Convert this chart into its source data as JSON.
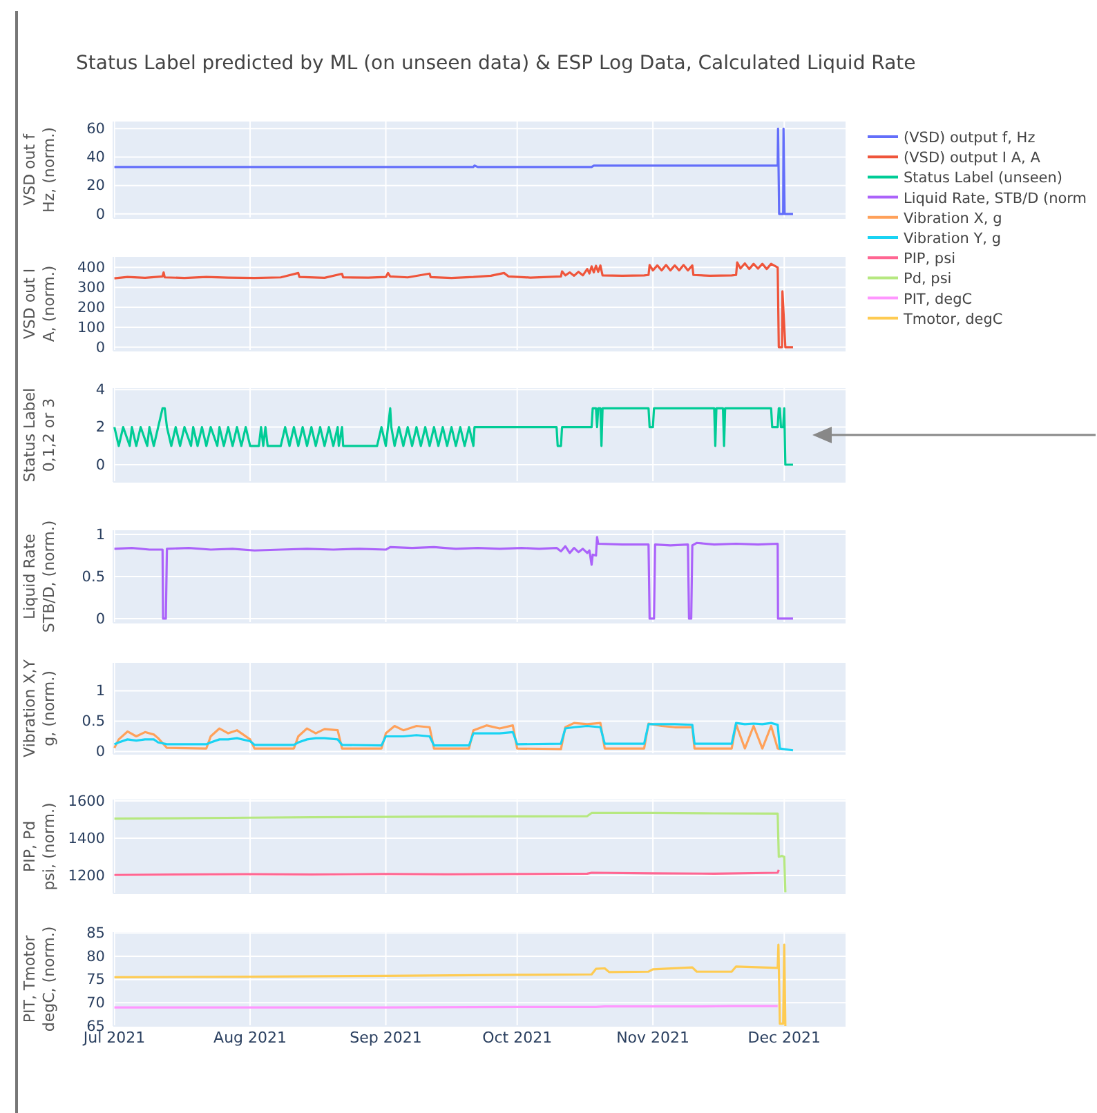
{
  "chart_data": [
    {
      "type": "line",
      "title": "Status Label predicted by ML (on unseen data) & ESP Log Data, Calculated Liquid Rate",
      "ylabel": "VSD out f\nHz, (norm.)",
      "grid": true,
      "legend": "right",
      "tick_labels": "y",
      "xlim": [
        "2021-06-30T18:00",
        "2021-12-15"
      ],
      "xticks": [
        {
          "value": "2021-07-01",
          "label": null
        },
        {
          "value": "2021-08-01",
          "label": null
        },
        {
          "value": "2021-09-01",
          "label": null
        },
        {
          "value": "2021-10-01",
          "label": null
        },
        {
          "value": "2021-11-01",
          "label": null
        },
        {
          "value": "2021-12-01",
          "label": null
        }
      ],
      "ylim": [
        -3,
        65
      ],
      "yticks": [
        0,
        20,
        40,
        60
      ],
      "x": [
        "2021-07-01",
        "2021-09-21",
        "2021-09-21T06:00",
        "2021-09-22",
        "2021-10-18",
        "2021-10-18T12:00",
        "2021-11-29T12:00",
        "2021-11-29T14:00",
        "2021-11-29T20:00",
        "2021-11-30T18:00",
        "2021-11-30T20:00",
        "2021-12-01T02:00",
        "2021-12-03"
      ],
      "series": [
        {
          "name": "(VSD) output f, Hz",
          "color": "#636efa",
          "values": [
            33,
            33,
            34,
            33,
            33,
            34,
            34,
            60,
            0,
            0,
            60,
            0,
            0
          ]
        }
      ]
    },
    {
      "type": "line",
      "ylabel": "VSD out I\nA, (norm.)",
      "grid": true,
      "legend": "right",
      "tick_labels": "y",
      "xlim": [
        "2021-06-30T18:00",
        "2021-12-15"
      ],
      "xticks": [
        {
          "value": "2021-07-01",
          "label": null
        },
        {
          "value": "2021-08-01",
          "label": null
        },
        {
          "value": "2021-09-01",
          "label": null
        },
        {
          "value": "2021-10-01",
          "label": null
        },
        {
          "value": "2021-11-01",
          "label": null
        },
        {
          "value": "2021-12-01",
          "label": null
        }
      ],
      "ylim": [
        -18,
        453
      ],
      "yticks": [
        0,
        100,
        200,
        300,
        400
      ],
      "x": [
        "2021-07-01",
        "2021-07-04",
        "2021-07-08",
        "2021-07-12",
        "2021-07-12T06:00",
        "2021-07-12T12:00",
        "2021-07-17",
        "2021-07-22",
        "2021-07-27",
        "2021-08-02",
        "2021-08-08",
        "2021-08-12",
        "2021-08-12T06:00",
        "2021-08-18",
        "2021-08-22",
        "2021-08-22T06:00",
        "2021-08-28",
        "2021-09-01",
        "2021-09-01T12:00",
        "2021-09-02",
        "2021-09-06",
        "2021-09-11",
        "2021-09-11T06:00",
        "2021-09-16",
        "2021-09-21",
        "2021-09-25",
        "2021-09-28",
        "2021-09-29",
        "2021-10-04",
        "2021-10-08",
        "2021-10-11",
        "2021-10-11T06:00",
        "2021-10-12",
        "2021-10-13",
        "2021-10-14",
        "2021-10-15",
        "2021-10-16",
        "2021-10-17",
        "2021-10-17T12:00",
        "2021-10-18",
        "2021-10-18T12:00",
        "2021-10-19",
        "2021-10-19T12:00",
        "2021-10-20",
        "2021-10-20T12:00",
        "2021-10-25",
        "2021-10-30",
        "2021-10-31",
        "2021-10-31T06:00",
        "2021-11-01",
        "2021-11-02",
        "2021-11-03",
        "2021-11-04",
        "2021-11-05",
        "2021-11-06",
        "2021-11-07",
        "2021-11-08",
        "2021-11-09",
        "2021-11-10",
        "2021-11-10T06:00",
        "2021-11-14",
        "2021-11-19",
        "2021-11-20",
        "2021-11-20T06:00",
        "2021-11-21",
        "2021-11-22",
        "2021-11-23",
        "2021-11-24",
        "2021-11-25",
        "2021-11-26",
        "2021-11-27",
        "2021-11-28",
        "2021-11-29T12:00",
        "2021-11-29T14:00",
        "2021-11-29T18:00",
        "2021-11-30T12:00",
        "2021-11-30T14:00",
        "2021-12-01T06:00",
        "2021-12-03"
      ],
      "series": [
        {
          "name": "(VSD) output I A, A",
          "color": "#ef553b",
          "values": [
            345,
            352,
            348,
            355,
            375,
            350,
            347,
            352,
            349,
            347,
            350,
            372,
            352,
            348,
            368,
            350,
            349,
            352,
            372,
            355,
            350,
            369,
            351,
            347,
            352,
            358,
            372,
            355,
            349,
            352,
            355,
            380,
            360,
            375,
            358,
            378,
            360,
            392,
            370,
            405,
            375,
            408,
            378,
            410,
            360,
            358,
            360,
            362,
            412,
            385,
            410,
            385,
            412,
            385,
            410,
            385,
            412,
            385,
            410,
            362,
            358,
            360,
            362,
            425,
            395,
            420,
            392,
            418,
            394,
            418,
            392,
            418,
            400,
            275,
            0,
            0,
            280,
            0,
            0
          ]
        }
      ]
    },
    {
      "type": "line",
      "ylabel": "Status Label\n0,1,2 or 3",
      "grid": true,
      "legend": "right",
      "tick_labels": "y",
      "xlim": [
        "2021-06-30T18:00",
        "2021-12-15"
      ],
      "xticks": [
        {
          "value": "2021-07-01",
          "label": null
        },
        {
          "value": "2021-08-01",
          "label": null
        },
        {
          "value": "2021-09-01",
          "label": null
        },
        {
          "value": "2021-10-01",
          "label": null
        },
        {
          "value": "2021-11-01",
          "label": null
        },
        {
          "value": "2021-12-01",
          "label": null
        }
      ],
      "ylim": [
        -0.92,
        4.08
      ],
      "yticks": [
        0,
        2,
        4
      ],
      "x": [
        "2021-07-01",
        "2021-07-02",
        "2021-07-03",
        "2021-07-04T12:00",
        "2021-07-05",
        "2021-07-06",
        "2021-07-07",
        "2021-07-08T12:00",
        "2021-07-09",
        "2021-07-10",
        "2021-07-11",
        "2021-07-12",
        "2021-07-12T12:00",
        "2021-07-13",
        "2021-07-14",
        "2021-07-15",
        "2021-07-16",
        "2021-07-17",
        "2021-07-18T12:00",
        "2021-07-19",
        "2021-07-20",
        "2021-07-21",
        "2021-07-22",
        "2021-07-23",
        "2021-07-24T12:00",
        "2021-07-25",
        "2021-07-26",
        "2021-07-27",
        "2021-07-28",
        "2021-07-29",
        "2021-07-30",
        "2021-07-31",
        "2021-08-01",
        "2021-08-03",
        "2021-08-03T12:00",
        "2021-08-04",
        "2021-08-04T12:00",
        "2021-08-05",
        "2021-08-08",
        "2021-08-09",
        "2021-08-10",
        "2021-08-11",
        "2021-08-12",
        "2021-08-13",
        "2021-08-14",
        "2021-08-15",
        "2021-08-16",
        "2021-08-17",
        "2021-08-18",
        "2021-08-19",
        "2021-08-20",
        "2021-08-21",
        "2021-08-21T06:00",
        "2021-08-22",
        "2021-08-22T06:00",
        "2021-08-30",
        "2021-08-31",
        "2021-09-01",
        "2021-09-02",
        "2021-09-02T06:00",
        "2021-09-03",
        "2021-09-04",
        "2021-09-05",
        "2021-09-06",
        "2021-09-07",
        "2021-09-08",
        "2021-09-09",
        "2021-09-10",
        "2021-09-11",
        "2021-09-12",
        "2021-09-13",
        "2021-09-14",
        "2021-09-15",
        "2021-09-16",
        "2021-09-17",
        "2021-09-18",
        "2021-09-19",
        "2021-09-20",
        "2021-09-21",
        "2021-09-21T06:00",
        "2021-10-10",
        "2021-10-10T06:00",
        "2021-10-11",
        "2021-10-11T06:00",
        "2021-10-18",
        "2021-10-18T06:00",
        "2021-10-19",
        "2021-10-19T06:00",
        "2021-10-19T12:00",
        "2021-10-20",
        "2021-10-20T06:00",
        "2021-10-20T12:00",
        "2021-10-31",
        "2021-10-31T06:00",
        "2021-11-01",
        "2021-11-01T06:00",
        "2021-11-15",
        "2021-11-15T06:00",
        "2021-11-15T12:00",
        "2021-11-17",
        "2021-11-17T06:00",
        "2021-11-17T12:00",
        "2021-11-28",
        "2021-11-28T06:00",
        "2021-11-29T12:00",
        "2021-11-29T18:00",
        "2021-11-30",
        "2021-11-30T06:00",
        "2021-11-30T18:00",
        "2021-12-01",
        "2021-12-01T06:00",
        "2021-12-03"
      ],
      "series": [
        {
          "name": "Status Label (unseen)",
          "color": "#00cc96",
          "values": [
            2,
            1,
            2,
            1,
            2,
            1,
            2,
            1,
            2,
            1,
            2,
            3,
            3,
            2,
            1,
            2,
            1,
            2,
            1,
            2,
            1,
            2,
            1,
            2,
            1,
            2,
            1,
            2,
            1,
            2,
            1,
            2,
            1,
            1,
            2,
            1,
            2,
            1,
            1,
            2,
            1,
            2,
            1,
            2,
            1,
            2,
            1,
            2,
            1,
            2,
            1,
            2,
            1,
            2,
            1,
            1,
            2,
            1,
            3,
            2,
            1,
            2,
            1,
            2,
            1,
            2,
            1,
            2,
            1,
            2,
            1,
            2,
            1,
            2,
            1,
            2,
            1,
            2,
            1,
            2,
            2,
            1,
            1,
            2,
            2,
            3,
            3,
            2,
            3,
            3,
            1,
            3,
            3,
            2,
            2,
            3,
            3,
            1,
            3,
            3,
            1,
            3,
            3,
            2,
            2,
            3,
            3,
            2,
            2,
            3,
            0,
            0
          ]
        }
      ]
    },
    {
      "type": "line",
      "ylabel": "Liquid Rate\nSTB/D, (norm.)",
      "grid": true,
      "legend": "right",
      "tick_labels": "y",
      "xlim": [
        "2021-06-30T18:00",
        "2021-12-15"
      ],
      "xticks": [
        {
          "value": "2021-07-01",
          "label": null
        },
        {
          "value": "2021-08-01",
          "label": null
        },
        {
          "value": "2021-09-01",
          "label": null
        },
        {
          "value": "2021-10-01",
          "label": null
        },
        {
          "value": "2021-11-01",
          "label": null
        },
        {
          "value": "2021-12-01",
          "label": null
        }
      ],
      "ylim": [
        -0.05,
        1.05
      ],
      "yticks": [
        0,
        {
          "value": 0.5,
          "label": "0.5"
        },
        1
      ],
      "x": [
        "2021-07-01",
        "2021-07-05",
        "2021-07-09",
        "2021-07-12",
        "2021-07-12T03:00",
        "2021-07-12T18:00",
        "2021-07-13",
        "2021-07-18",
        "2021-07-23",
        "2021-07-28",
        "2021-08-02",
        "2021-08-08",
        "2021-08-14",
        "2021-08-20",
        "2021-08-26",
        "2021-09-01",
        "2021-09-02",
        "2021-09-07",
        "2021-09-12",
        "2021-09-17",
        "2021-09-22",
        "2021-09-27",
        "2021-10-02",
        "2021-10-06",
        "2021-10-10",
        "2021-10-11",
        "2021-10-12",
        "2021-10-13",
        "2021-10-14",
        "2021-10-15",
        "2021-10-16",
        "2021-10-17",
        "2021-10-17T12:00",
        "2021-10-18",
        "2021-10-18T06:00",
        "2021-10-19",
        "2021-10-19T06:00",
        "2021-10-19T12:00",
        "2021-10-25",
        "2021-10-31",
        "2021-10-31T06:00",
        "2021-11-01T06:00",
        "2021-11-01T12:00",
        "2021-11-05",
        "2021-11-09",
        "2021-11-09T06:00",
        "2021-11-09T18:00",
        "2021-11-10",
        "2021-11-11",
        "2021-11-15",
        "2021-11-20",
        "2021-11-25",
        "2021-11-29T12:00",
        "2021-11-29T14:00",
        "2021-12-03"
      ],
      "series": [
        {
          "name": "Liquid Rate, STB/D (norm",
          "color": "#ab63fa",
          "values": [
            0.83,
            0.84,
            0.82,
            0.82,
            0,
            0,
            0.83,
            0.84,
            0.82,
            0.83,
            0.81,
            0.82,
            0.83,
            0.82,
            0.83,
            0.82,
            0.85,
            0.84,
            0.85,
            0.83,
            0.84,
            0.83,
            0.84,
            0.83,
            0.84,
            0.8,
            0.86,
            0.78,
            0.84,
            0.79,
            0.83,
            0.78,
            0.81,
            0.64,
            0.76,
            0.75,
            0.97,
            0.89,
            0.88,
            0.88,
            0,
            0,
            0.88,
            0.87,
            0.88,
            0,
            0,
            0.87,
            0.9,
            0.88,
            0.89,
            0.88,
            0.89,
            0,
            0
          ]
        }
      ]
    },
    {
      "type": "line",
      "ylabel": "Vibration X,Y\ng, (norm.)",
      "grid": true,
      "legend": "right",
      "tick_labels": "y",
      "xlim": [
        "2021-06-30T18:00",
        "2021-12-15"
      ],
      "xticks": [
        {
          "value": "2021-07-01",
          "label": null
        },
        {
          "value": "2021-08-01",
          "label": null
        },
        {
          "value": "2021-09-01",
          "label": null
        },
        {
          "value": "2021-10-01",
          "label": null
        },
        {
          "value": "2021-11-01",
          "label": null
        },
        {
          "value": "2021-12-01",
          "label": null
        }
      ],
      "ylim": [
        -0.04,
        1.46
      ],
      "yticks": [
        0,
        {
          "value": 0.5,
          "label": "0.5"
        },
        1
      ],
      "x": [
        "2021-07-01",
        "2021-07-02",
        "2021-07-04",
        "2021-07-06",
        "2021-07-08",
        "2021-07-10",
        "2021-07-11",
        "2021-07-13",
        "2021-07-22",
        "2021-07-23",
        "2021-07-25",
        "2021-07-27",
        "2021-07-29",
        "2021-08-01",
        "2021-08-02",
        "2021-08-11",
        "2021-08-12",
        "2021-08-14",
        "2021-08-16",
        "2021-08-18",
        "2021-08-21",
        "2021-08-22",
        "2021-08-31",
        "2021-09-01",
        "2021-09-03",
        "2021-09-05",
        "2021-09-08",
        "2021-09-11",
        "2021-09-12",
        "2021-09-20",
        "2021-09-21",
        "2021-09-24",
        "2021-09-27",
        "2021-09-30",
        "2021-10-01",
        "2021-10-11",
        "2021-10-12",
        "2021-10-14",
        "2021-10-17",
        "2021-10-20",
        "2021-10-21",
        "2021-10-30",
        "2021-10-31",
        "2021-11-03",
        "2021-11-06",
        "2021-11-10",
        "2021-11-10T12:00",
        "2021-11-19",
        "2021-11-20",
        "2021-11-22",
        "2021-11-24",
        "2021-11-26",
        "2021-11-28",
        "2021-11-29T12:00",
        "2021-11-30",
        "2021-12-03"
      ],
      "series": [
        {
          "name": "Vibration X, g",
          "color": "#ffa15a",
          "values": [
            0.06,
            0.2,
            0.33,
            0.25,
            0.32,
            0.28,
            0.22,
            0.06,
            0.05,
            0.25,
            0.38,
            0.3,
            0.35,
            0.2,
            0.05,
            0.05,
            0.25,
            0.38,
            0.3,
            0.37,
            0.35,
            0.05,
            0.05,
            0.3,
            0.42,
            0.35,
            0.42,
            0.4,
            0.05,
            0.05,
            0.35,
            0.43,
            0.38,
            0.43,
            0.05,
            0.04,
            0.4,
            0.47,
            0.45,
            0.47,
            0.05,
            0.05,
            0.46,
            0.42,
            0.4,
            0.4,
            0.05,
            0.05,
            0.45,
            0.05,
            0.42,
            0.05,
            0.42,
            0.05,
            0.04,
            null
          ]
        },
        {
          "name": "Vibration Y, g",
          "color": "#19d3f3",
          "values": [
            0.12,
            0.15,
            0.2,
            0.18,
            0.2,
            0.2,
            0.15,
            0.12,
            0.12,
            0.15,
            0.2,
            0.2,
            0.22,
            0.17,
            0.11,
            0.11,
            0.15,
            0.2,
            0.22,
            0.22,
            0.2,
            0.11,
            0.1,
            0.25,
            0.25,
            0.25,
            0.27,
            0.25,
            0.1,
            0.1,
            0.3,
            0.3,
            0.3,
            0.32,
            0.12,
            0.13,
            0.38,
            0.4,
            0.42,
            0.4,
            0.13,
            0.13,
            0.45,
            0.45,
            0.45,
            0.44,
            0.13,
            0.13,
            0.47,
            0.45,
            0.46,
            0.45,
            0.47,
            0.44,
            0.05,
            0.02
          ]
        }
      ]
    },
    {
      "type": "line",
      "ylabel": "PIP, Pd\npsi, (norm.)",
      "grid": true,
      "legend": "right",
      "tick_labels": "y",
      "xlim": [
        "2021-06-30T18:00",
        "2021-12-15"
      ],
      "xticks": [
        {
          "value": "2021-07-01",
          "label": null
        },
        {
          "value": "2021-08-01",
          "label": null
        },
        {
          "value": "2021-09-01",
          "label": null
        },
        {
          "value": "2021-10-01",
          "label": null
        },
        {
          "value": "2021-11-01",
          "label": null
        },
        {
          "value": "2021-12-01",
          "label": null
        }
      ],
      "ylim": [
        1104,
        1607
      ],
      "yticks": [
        1200,
        1400,
        1600
      ],
      "x": [
        "2021-07-01",
        "2021-07-15",
        "2021-08-01",
        "2021-08-15",
        "2021-09-01",
        "2021-09-15",
        "2021-10-01",
        "2021-10-17",
        "2021-10-18",
        "2021-11-01",
        "2021-11-15",
        "2021-11-29T12:00",
        "2021-11-29T18:00",
        "2021-11-30T12:00",
        "2021-12-01",
        "2021-12-01T06:00"
      ],
      "series": [
        {
          "name": "PIP, psi",
          "color": "#ff6692",
          "values": [
            1203,
            1205,
            1207,
            1205,
            1208,
            1206,
            1208,
            1210,
            1215,
            1212,
            1210,
            1215,
            1230,
            null,
            null,
            null
          ]
        },
        {
          "name": "Pd, psi",
          "color": "#b6e880",
          "values": [
            1505,
            1507,
            1510,
            1512,
            1514,
            1516,
            1517,
            1518,
            1535,
            1535,
            1533,
            1532,
            1300,
            1305,
            1300,
            1110
          ]
        }
      ]
    },
    {
      "type": "line",
      "ylabel": "PIT, Tmotor\ndegC, (norm.)",
      "grid": true,
      "legend": "right",
      "xlim": [
        "2021-06-30T18:00",
        "2021-12-15"
      ],
      "xticks": [
        {
          "value": "2021-07-01",
          "label": "Jul 2021"
        },
        {
          "value": "2021-08-01",
          "label": "Aug 2021"
        },
        {
          "value": "2021-09-01",
          "label": "Sep 2021"
        },
        {
          "value": "2021-10-01",
          "label": "Oct 2021"
        },
        {
          "value": "2021-11-01",
          "label": "Nov 2021"
        },
        {
          "value": "2021-12-01",
          "label": "Dec 2021"
        }
      ],
      "ylim": [
        65,
        85.2
      ],
      "yticks": [
        65,
        70,
        75,
        80,
        85
      ],
      "x": [
        "2021-07-01",
        "2021-08-01",
        "2021-09-01",
        "2021-10-01",
        "2021-10-18",
        "2021-10-19",
        "2021-10-21",
        "2021-10-22",
        "2021-10-31",
        "2021-11-01",
        "2021-11-10",
        "2021-11-11",
        "2021-11-19",
        "2021-11-20",
        "2021-11-29T12:00",
        "2021-11-29T16:00",
        "2021-11-30",
        "2021-11-30T18:00",
        "2021-12-01",
        "2021-12-01T06:00"
      ],
      "series": [
        {
          "name": "PIT, degC",
          "color": "#ff97ff",
          "values": [
            69,
            69,
            69,
            69.1,
            69.1,
            69.1,
            69.2,
            69.2,
            69.2,
            69.2,
            69.2,
            69.2,
            69.3,
            69.3,
            69.3,
            null,
            null,
            null,
            null,
            null
          ]
        },
        {
          "name": "Tmotor, degC",
          "color": "#fecb52",
          "values": [
            75.5,
            75.6,
            75.8,
            76,
            76.1,
            77.3,
            77.4,
            76.6,
            76.7,
            77.2,
            77.6,
            76.7,
            76.7,
            77.8,
            77.5,
            82.5,
            65.5,
            65.5,
            82.5,
            65
          ]
        }
      ]
    }
  ]
}
